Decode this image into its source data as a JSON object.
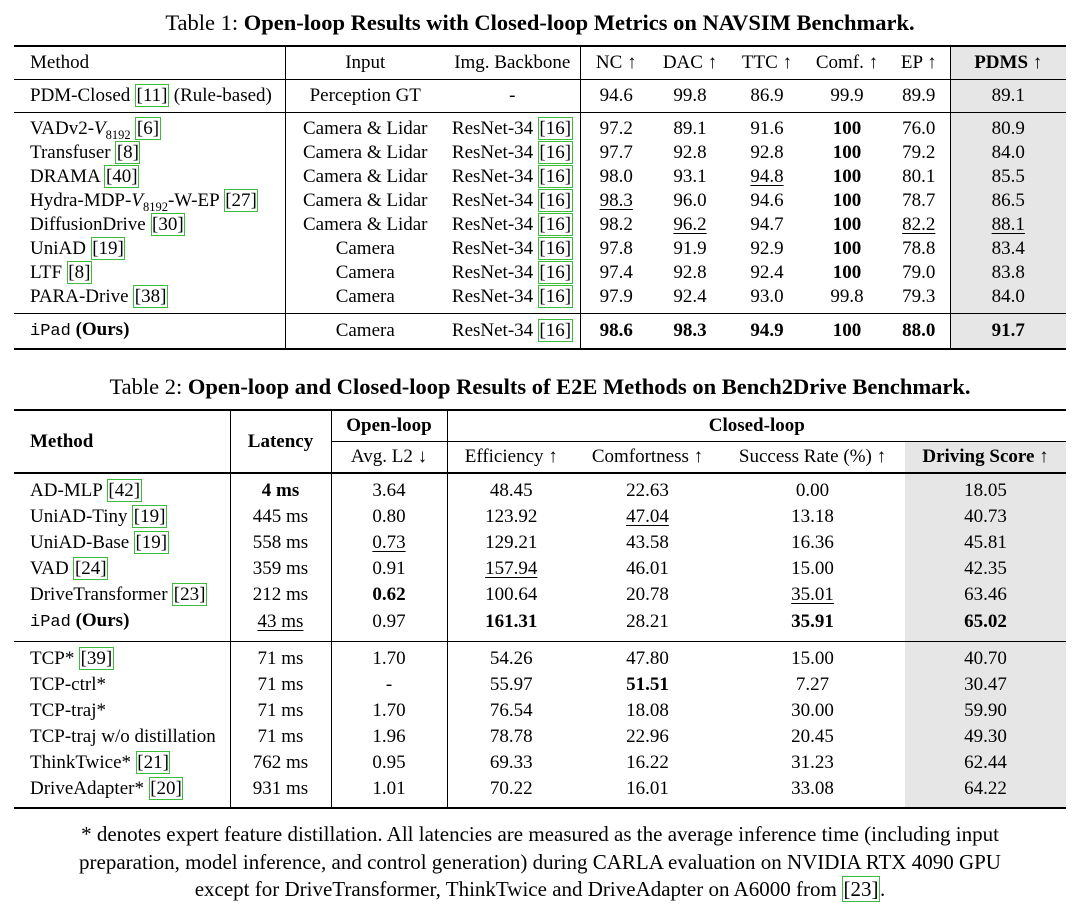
{
  "colors": {
    "shaded_column": "#e6e6e6",
    "citation_box_green": "#3dbb3d",
    "text": "#000000",
    "background": "#ffffff"
  },
  "table1": {
    "caption": {
      "prefix": "Table 1: ",
      "title": "Open-loop Results with Closed-loop Metrics on NAVSIM Benchmark."
    },
    "columns": [
      "Method",
      "Input",
      "Img. Backbone",
      "NC ↑",
      "DAC ↑",
      "TTC ↑",
      "Comf. ↑",
      "EP ↑",
      "PDMS ↑"
    ],
    "sections": [
      {
        "rows": [
          {
            "method": [
              {
                "t": "PDM-Closed [11] (Rule-based)"
              }
            ],
            "cells": [
              "Perception GT",
              "-",
              "94.6",
              "99.8",
              "86.9",
              "99.9",
              "89.9",
              "89.1"
            ]
          }
        ]
      },
      {
        "rows": [
          {
            "method": [
              {
                "t": "VADv2-"
              },
              {
                "t": "V",
                "cls": "cal"
              },
              {
                "t": "8192",
                "cls": "sub"
              },
              {
                "t": " [6]"
              }
            ],
            "cells": [
              "Camera & Lidar",
              "ResNet-34 [16]",
              "97.2",
              "89.1",
              "91.6",
              {
                "v": "100",
                "b": true
              },
              "76.0",
              "80.9"
            ]
          },
          {
            "method": [
              {
                "t": "Transfuser [8]"
              }
            ],
            "cells": [
              "Camera & Lidar",
              "ResNet-34 [16]",
              "97.7",
              "92.8",
              "92.8",
              {
                "v": "100",
                "b": true
              },
              "79.2",
              "84.0"
            ]
          },
          {
            "method": [
              {
                "t": "DRAMA [40]"
              }
            ],
            "cells": [
              "Camera & Lidar",
              "ResNet-34 [16]",
              "98.0",
              "93.1",
              {
                "v": "94.8",
                "u": true
              },
              {
                "v": "100",
                "b": true
              },
              "80.1",
              "85.5"
            ]
          },
          {
            "method": [
              {
                "t": "Hydra-MDP-"
              },
              {
                "t": "V",
                "cls": "cal"
              },
              {
                "t": "8192",
                "cls": "sub"
              },
              {
                "t": "-W-EP [27]"
              }
            ],
            "cells": [
              "Camera & Lidar",
              "ResNet-34 [16]",
              {
                "v": "98.3",
                "u": true
              },
              "96.0",
              "94.6",
              {
                "v": "100",
                "b": true
              },
              "78.7",
              "86.5"
            ]
          },
          {
            "method": [
              {
                "t": "DiffusionDrive [30]"
              }
            ],
            "cells": [
              "Camera & Lidar",
              "ResNet-34 [16]",
              "98.2",
              {
                "v": "96.2",
                "u": true
              },
              "94.7",
              {
                "v": "100",
                "b": true
              },
              {
                "v": "82.2",
                "u": true
              },
              {
                "v": "88.1",
                "u": true
              }
            ]
          },
          {
            "method": [
              {
                "t": "UniAD [19]"
              }
            ],
            "cells": [
              "Camera",
              "ResNet-34 [16]",
              "97.8",
              "91.9",
              "92.9",
              {
                "v": "100",
                "b": true
              },
              "78.8",
              "83.4"
            ]
          },
          {
            "method": [
              {
                "t": "LTF [8]"
              }
            ],
            "cells": [
              "Camera",
              "ResNet-34 [16]",
              "97.4",
              "92.8",
              "92.4",
              {
                "v": "100",
                "b": true
              },
              "79.0",
              "83.8"
            ]
          },
          {
            "method": [
              {
                "t": "PARA-Drive [38]"
              }
            ],
            "cells": [
              "Camera",
              "ResNet-34 [16]",
              "97.9",
              "92.4",
              "93.0",
              "99.8",
              "79.3",
              "84.0"
            ]
          }
        ]
      },
      {
        "rows": [
          {
            "method": [
              {
                "t": "iPad",
                "cls": "tt"
              },
              {
                "t": " "
              },
              {
                "t": "(Ours)",
                "cls": "b"
              }
            ],
            "cells": [
              "Camera",
              "ResNet-34 [16]",
              {
                "v": "98.6",
                "b": true
              },
              {
                "v": "98.3",
                "b": true
              },
              {
                "v": "94.9",
                "b": true
              },
              {
                "v": "100",
                "b": true
              },
              {
                "v": "88.0",
                "b": true
              },
              {
                "v": "91.7",
                "b": true
              }
            ]
          }
        ]
      }
    ]
  },
  "table2": {
    "caption": {
      "prefix": "Table 2: ",
      "title": "Open-loop and Closed-loop Results of E2E Methods on Bench2Drive Benchmark."
    },
    "header": {
      "method": "Method",
      "latency": "Latency",
      "open_loop": "Open-loop",
      "closed_loop": "Closed-loop",
      "sub": [
        "Avg. L2 ↓",
        "Efficiency ↑",
        "Comfortness ↑",
        "Success Rate (%) ↑",
        "Driving Score ↑"
      ]
    },
    "sections": [
      {
        "rows": [
          {
            "method": [
              {
                "t": "AD-MLP [42]"
              }
            ],
            "cells": [
              {
                "v": "4 ms",
                "b": true
              },
              "3.64",
              "48.45",
              "22.63",
              "0.00",
              "18.05"
            ]
          },
          {
            "method": [
              {
                "t": "UniAD-Tiny [19]"
              }
            ],
            "cells": [
              "445 ms",
              "0.80",
              "123.92",
              {
                "v": "47.04",
                "u": true
              },
              "13.18",
              "40.73"
            ]
          },
          {
            "method": [
              {
                "t": "UniAD-Base [19]"
              }
            ],
            "cells": [
              "558 ms",
              {
                "v": "0.73",
                "u": true
              },
              "129.21",
              "43.58",
              "16.36",
              "45.81"
            ]
          },
          {
            "method": [
              {
                "t": "VAD [24]"
              }
            ],
            "cells": [
              "359 ms",
              "0.91",
              {
                "v": "157.94",
                "u": true
              },
              "46.01",
              "15.00",
              "42.35"
            ]
          },
          {
            "method": [
              {
                "t": "DriveTransformer [23]"
              }
            ],
            "cells": [
              "212 ms",
              {
                "v": "0.62",
                "b": true
              },
              "100.64",
              "20.78",
              {
                "v": "35.01",
                "u": true
              },
              "63.46"
            ]
          },
          {
            "method": [
              {
                "t": "iPad",
                "cls": "tt"
              },
              {
                "t": " "
              },
              {
                "t": "(Ours)",
                "cls": "b"
              }
            ],
            "cells": [
              {
                "v": "43 ms",
                "u": true
              },
              "0.97",
              {
                "v": "161.31",
                "b": true
              },
              "28.21",
              {
                "v": "35.91",
                "b": true
              },
              {
                "v": "65.02",
                "b": true
              }
            ]
          }
        ]
      },
      {
        "rows": [
          {
            "method": [
              {
                "t": "TCP* [39]"
              }
            ],
            "cells": [
              "71 ms",
              "1.70",
              "54.26",
              "47.80",
              "15.00",
              "40.70"
            ]
          },
          {
            "method": [
              {
                "t": "TCP-ctrl*"
              }
            ],
            "cells": [
              "71 ms",
              "-",
              "55.97",
              {
                "v": "51.51",
                "b": true
              },
              "7.27",
              "30.47"
            ]
          },
          {
            "method": [
              {
                "t": "TCP-traj*"
              }
            ],
            "cells": [
              "71 ms",
              "1.70",
              "76.54",
              "18.08",
              "30.00",
              "59.90"
            ]
          },
          {
            "method": [
              {
                "t": "TCP-traj w/o distillation"
              }
            ],
            "cells": [
              "71 ms",
              "1.96",
              "78.78",
              "22.96",
              "20.45",
              "49.30"
            ]
          },
          {
            "method": [
              {
                "t": "ThinkTwice* [21]"
              }
            ],
            "cells": [
              "762 ms",
              "0.95",
              "69.33",
              "16.22",
              "31.23",
              "62.44"
            ]
          },
          {
            "method": [
              {
                "t": "DriveAdapter* [20]"
              }
            ],
            "cells": [
              "931 ms",
              "1.01",
              "70.22",
              "16.01",
              "33.08",
              "64.22"
            ]
          }
        ]
      }
    ]
  },
  "footnote": {
    "lines": [
      "* denotes expert feature distillation.  All latencies are measured as the average inference time (including input",
      "preparation, model inference, and control generation) during CARLA evaluation on NVIDIA RTX 4090 GPU",
      "except for DriveTransformer, ThinkTwice and DriveAdapter on A6000 from [23]."
    ]
  }
}
